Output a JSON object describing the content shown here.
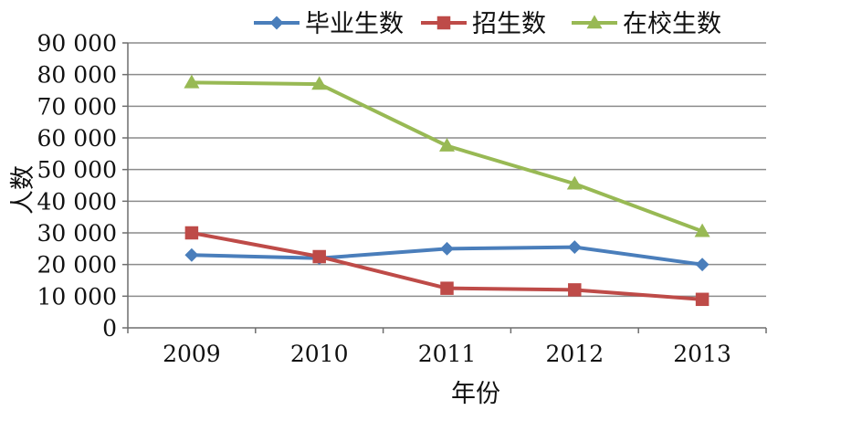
{
  "chart_data": {
    "type": "line",
    "title": "",
    "xlabel": "年份",
    "ylabel": "人数",
    "categories": [
      "2009",
      "2010",
      "2011",
      "2012",
      "2013"
    ],
    "ylim": [
      0,
      90000
    ],
    "yticks": [
      {
        "value": 0,
        "label": "0"
      },
      {
        "value": 10000,
        "label": "10 000"
      },
      {
        "value": 20000,
        "label": "20 000"
      },
      {
        "value": 30000,
        "label": "30 000"
      },
      {
        "value": 40000,
        "label": "40 000"
      },
      {
        "value": 50000,
        "label": "50 000"
      },
      {
        "value": 60000,
        "label": "60 000"
      },
      {
        "value": 70000,
        "label": "70 000"
      },
      {
        "value": 80000,
        "label": "80 000"
      },
      {
        "value": 90000,
        "label": "90 000"
      }
    ],
    "grid": true,
    "legend_position": "top",
    "series": [
      {
        "name": "毕业生数",
        "color": "#4a7ebb",
        "marker": "diamond",
        "values": [
          23000,
          22000,
          25000,
          25500,
          20000
        ]
      },
      {
        "name": "招生数",
        "color": "#be4b48",
        "marker": "square",
        "values": [
          30000,
          22500,
          12500,
          12000,
          9000
        ]
      },
      {
        "name": "在校生数",
        "color": "#98b954",
        "marker": "triangle",
        "values": [
          77500,
          77000,
          57500,
          45500,
          30500
        ]
      }
    ]
  }
}
